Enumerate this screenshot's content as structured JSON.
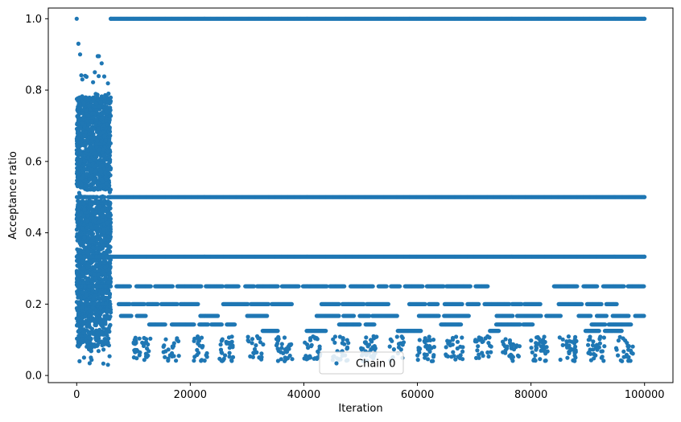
{
  "chart_data": {
    "type": "scatter",
    "title": "",
    "xlabel": "Iteration",
    "ylabel": "Acceptance ratio",
    "xlim": [
      -5000,
      105000
    ],
    "ylim": [
      -0.02,
      1.03
    ],
    "xticks": [
      0,
      20000,
      40000,
      60000,
      80000,
      100000
    ],
    "xtick_labels": [
      "0",
      "20000",
      "40000",
      "60000",
      "80000",
      "100000"
    ],
    "yticks": [
      0.0,
      0.2,
      0.4,
      0.6,
      0.8,
      1.0
    ],
    "ytick_labels": [
      "0.0",
      "0.2",
      "0.4",
      "0.6",
      "0.8",
      "1.0"
    ],
    "grid": false,
    "legend": {
      "position": "lower-center",
      "entries": [
        "Chain 0"
      ]
    },
    "series": [
      {
        "name": "Chain 0",
        "color": "#1f77b4",
        "marker": "circle",
        "segments": [
          {
            "x_range": [
              0,
              6000
            ],
            "y_range": [
              0.03,
              0.9
            ],
            "note_levels": [
              0.5,
              0.333,
              0.25,
              0.2
            ]
          },
          {
            "x_range": [
              6000,
              100000
            ],
            "levels": [
              1.0,
              0.5,
              0.333
            ]
          },
          {
            "x_range": [
              7000,
              100000
            ],
            "levels": [
              0.25,
              0.2,
              0.167,
              0.143,
              0.125
            ],
            "intermittent": true
          },
          {
            "x_range": [
              8000,
              100000
            ],
            "sparse_tail": [
              0.04,
              0.11
            ]
          }
        ],
        "sample_points": [
          [
            0,
            1.0
          ],
          [
            300,
            0.93
          ],
          [
            600,
            0.9
          ],
          [
            1000,
            0.83
          ],
          [
            1500,
            0.84
          ],
          [
            3200,
            0.85
          ],
          [
            3700,
            0.895
          ],
          [
            3900,
            0.895
          ],
          [
            4400,
            0.875
          ],
          [
            5600,
            0.79
          ],
          [
            500,
            0.04
          ],
          [
            1300,
            0.05
          ],
          [
            2500,
            0.05
          ],
          [
            5500,
            0.03
          ],
          [
            6000,
            1.0
          ],
          [
            100000,
            1.0
          ],
          [
            6000,
            0.5
          ],
          [
            100000,
            0.5
          ],
          [
            6000,
            0.333
          ],
          [
            100000,
            0.333
          ]
        ]
      }
    ]
  }
}
